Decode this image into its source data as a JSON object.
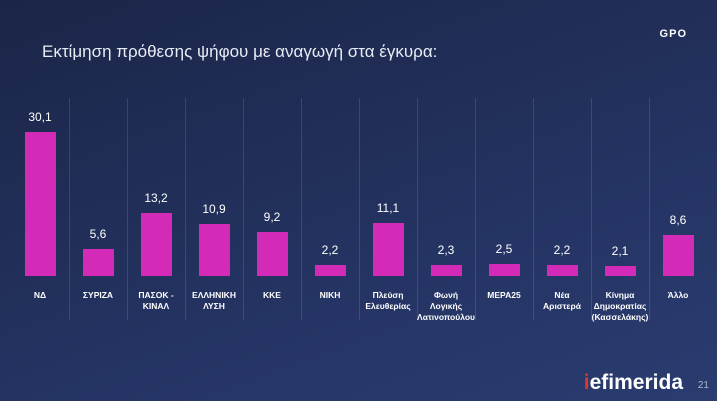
{
  "chart_data": {
    "type": "bar",
    "title": "Εκτίμηση πρόθεσης ψήφου με αναγωγή στα έγκυρα:",
    "categories": [
      "ΝΔ",
      "ΣΥΡΙΖΑ",
      "ΠΑΣΟΚ -\nΚΙΝΑΛ",
      "ΕΛΛΗΝΙΚΗ\nΛΥΣΗ",
      "ΚΚΕ",
      "ΝΙΚΗ",
      "Πλεύση\nΕλευθερίας",
      "Φωνή\nΛογικής\nΛατινοπούλου",
      "ΜΕΡΑ25",
      "Νέα\nΑριστερά",
      "Κίνημα\nΔημοκρατίας\n(Κασσελάκης)",
      "Άλλο"
    ],
    "values": [
      30.1,
      5.6,
      13.2,
      10.9,
      9.2,
      2.2,
      11.1,
      2.3,
      2.5,
      2.2,
      2.1,
      8.6
    ],
    "value_labels": [
      "30,1",
      "5,6",
      "13,2",
      "10,9",
      "9,2",
      "2,2",
      "11,1",
      "2,3",
      "2,5",
      "2,2",
      "2,1",
      "8,6"
    ],
    "color": "#d42ab8"
  },
  "header": {
    "logo": "GPO"
  },
  "footer": {
    "brand": "iefimerida",
    "page": "21"
  }
}
